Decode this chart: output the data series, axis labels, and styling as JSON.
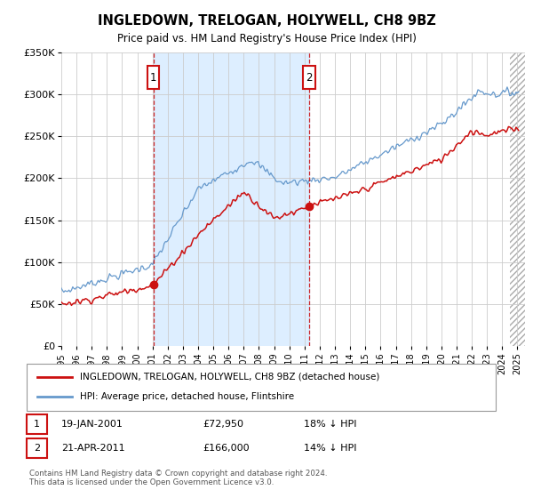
{
  "title": "INGLEDOWN, TRELOGAN, HOLYWELL, CH8 9BZ",
  "subtitle": "Price paid vs. HM Land Registry's House Price Index (HPI)",
  "ylim": [
    0,
    350000
  ],
  "xlim_start": 1995.0,
  "xlim_end": 2025.5,
  "yticks": [
    0,
    50000,
    100000,
    150000,
    200000,
    250000,
    300000,
    350000
  ],
  "ytick_labels": [
    "£0",
    "£50K",
    "£100K",
    "£150K",
    "£200K",
    "£250K",
    "£300K",
    "£350K"
  ],
  "xticks": [
    1995,
    1996,
    1997,
    1998,
    1999,
    2000,
    2001,
    2002,
    2003,
    2004,
    2005,
    2006,
    2007,
    2008,
    2009,
    2010,
    2011,
    2012,
    2013,
    2014,
    2015,
    2016,
    2017,
    2018,
    2019,
    2020,
    2021,
    2022,
    2023,
    2024,
    2025
  ],
  "sale1_x": 2001.05,
  "sale1_y": 72950,
  "sale2_x": 2011.3,
  "sale2_y": 166000,
  "shade_color": "#ddeeff",
  "grid_color": "#cccccc",
  "hpi_line_color": "#6699cc",
  "price_line_color": "#cc1111",
  "marker_box_color": "#cc1111",
  "vline_color": "#cc1111",
  "background_color": "#ffffff",
  "legend_entry1": "INGLEDOWN, TRELOGAN, HOLYWELL, CH8 9BZ (detached house)",
  "legend_entry2": "HPI: Average price, detached house, Flintshire",
  "footnote": "Contains HM Land Registry data © Crown copyright and database right 2024.\nThis data is licensed under the Open Government Licence v3.0.",
  "table_row1": [
    "1",
    "19-JAN-2001",
    "£72,950",
    "18% ↓ HPI"
  ],
  "table_row2": [
    "2",
    "21-APR-2011",
    "£166,000",
    "14% ↓ HPI"
  ]
}
